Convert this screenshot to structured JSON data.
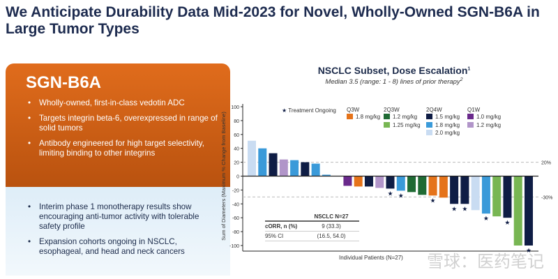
{
  "slide": {
    "title": "We Anticipate Durability Data Mid-2023 for Novel, Wholly-Owned SGN-B6A in Large Tumor Types"
  },
  "panel": {
    "heading": "SGN-B6A",
    "top_bullets": [
      "Wholly-owned, first-in-class vedotin ADC",
      "Targets integrin beta-6, overexpressed in range of solid tumors",
      "Antibody engineered for high target selectivity, limiting binding to other integrins"
    ],
    "bottom_bullets": [
      "Interim phase 1 monotherapy results show encouraging anti-tumor activity with tolerable safety profile",
      "Expansion cohorts ongoing in NSCLC, esophageal, and head and neck cancers"
    ]
  },
  "watermark": "雪球：医药笔记",
  "chart_data": {
    "type": "bar",
    "title": "NSCLC Subset, Dose Escalation",
    "title_sup": "1",
    "subtitle": "Median 3.5 (range: 1 - 8) lines of prior therapy",
    "subtitle_sup": "2",
    "ylabel": "Sum of Diameters (Maximum % Change from Baseline)",
    "xlabel": "Individual Patients (N=27)",
    "ylim": [
      -100,
      100
    ],
    "yticks": [
      100,
      80,
      60,
      40,
      20,
      0,
      -20,
      -40,
      -60,
      -80,
      -100
    ],
    "reference_lines": [
      {
        "value": 20,
        "label": "20%"
      },
      {
        "value": -30,
        "label": "-30%"
      }
    ],
    "ongoing_label": "Treatment Ongoing",
    "colors": {
      "Q3W 1.8 mg/kg": "#e5731a",
      "2Q3W 1.2 mg/kg": "#1f6b34",
      "2Q3W 1.25 mg/kg": "#78b653",
      "2Q4W 1.5 mg/kg": "#0f1d45",
      "2Q4W 1.8 mg/kg": "#3a9ad9",
      "2Q4W 2.0 mg/kg": "#c9dcf2",
      "Q1W 1.0 mg/kg": "#6a2a8c",
      "Q1W 1.2 mg/kg": "#b195c9"
    },
    "legend": [
      {
        "schedule": "Q3W",
        "doses": [
          "1.8 mg/kg"
        ]
      },
      {
        "schedule": "2Q3W",
        "doses": [
          "1.2 mg/kg",
          "1.25 mg/kg"
        ]
      },
      {
        "schedule": "2Q4W",
        "doses": [
          "1.5 mg/kg",
          "1.8 mg/kg",
          "2.0 mg/kg"
        ]
      },
      {
        "schedule": "Q1W",
        "doses": [
          "1.0 mg/kg",
          "1.2 mg/kg"
        ]
      }
    ],
    "bars": [
      {
        "value": 51,
        "group": "2Q4W 2.0 mg/kg",
        "ongoing": false
      },
      {
        "value": 40,
        "group": "2Q4W 1.8 mg/kg",
        "ongoing": false
      },
      {
        "value": 33,
        "group": "2Q4W 1.5 mg/kg",
        "ongoing": false
      },
      {
        "value": 24,
        "group": "Q1W 1.2 mg/kg",
        "ongoing": false
      },
      {
        "value": 23,
        "group": "2Q4W 1.8 mg/kg",
        "ongoing": false
      },
      {
        "value": 20,
        "group": "2Q4W 1.5 mg/kg",
        "ongoing": false
      },
      {
        "value": 18,
        "group": "2Q4W 1.8 mg/kg",
        "ongoing": false
      },
      {
        "value": 2,
        "group": "2Q4W 1.8 mg/kg",
        "ongoing": false
      },
      {
        "value": 0,
        "group": "2Q4W 1.8 mg/kg",
        "ongoing": false
      },
      {
        "value": -14,
        "group": "Q1W 1.0 mg/kg",
        "ongoing": false
      },
      {
        "value": -15,
        "group": "Q3W 1.8 mg/kg",
        "ongoing": false
      },
      {
        "value": -15,
        "group": "2Q4W 1.5 mg/kg",
        "ongoing": false
      },
      {
        "value": -17,
        "group": "Q1W 1.2 mg/kg",
        "ongoing": false
      },
      {
        "value": -18,
        "group": "2Q4W 1.5 mg/kg",
        "ongoing": true
      },
      {
        "value": -21,
        "group": "2Q4W 1.8 mg/kg",
        "ongoing": true
      },
      {
        "value": -23,
        "group": "2Q3W 1.2 mg/kg",
        "ongoing": false
      },
      {
        "value": -27,
        "group": "2Q3W 1.2 mg/kg",
        "ongoing": false
      },
      {
        "value": -28,
        "group": "Q3W 1.8 mg/kg",
        "ongoing": true
      },
      {
        "value": -31,
        "group": "Q3W 1.8 mg/kg",
        "ongoing": false
      },
      {
        "value": -40,
        "group": "2Q4W 1.5 mg/kg",
        "ongoing": true
      },
      {
        "value": -40,
        "group": "2Q4W 1.5 mg/kg",
        "ongoing": true
      },
      {
        "value": -49,
        "group": "2Q4W 2.0 mg/kg",
        "ongoing": false
      },
      {
        "value": -54,
        "group": "2Q4W 1.8 mg/kg",
        "ongoing": true
      },
      {
        "value": -58,
        "group": "2Q3W 1.25 mg/kg",
        "ongoing": false
      },
      {
        "value": -60,
        "group": "2Q4W 1.5 mg/kg",
        "ongoing": true
      },
      {
        "value": -100,
        "group": "2Q3W 1.25 mg/kg",
        "ongoing": false
      },
      {
        "value": -100,
        "group": "2Q4W 1.5 mg/kg",
        "ongoing": true
      }
    ],
    "table": {
      "header": [
        "",
        "NSCLC N=27"
      ],
      "rows": [
        [
          "cORR, n (%)",
          "9 (33.3)"
        ],
        [
          "95% CI",
          "(16.5, 54.0)"
        ]
      ]
    }
  }
}
